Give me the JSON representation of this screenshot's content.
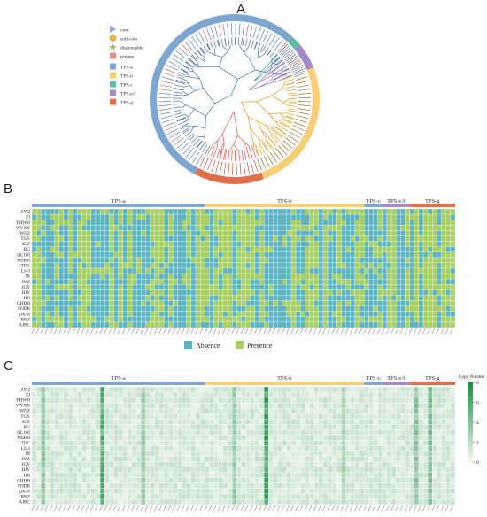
{
  "panels": {
    "a": "A",
    "b": "B",
    "c": "C"
  },
  "legend_a": {
    "categories": [
      {
        "label": "core",
        "icon": "triangle-icon",
        "color": "#8fa9d6"
      },
      {
        "label": "soft-core",
        "icon": "circle-icon",
        "color": "#f0b74a"
      },
      {
        "label": "dispensable",
        "icon": "star-icon",
        "color": "#9cbc6a"
      },
      {
        "label": "private",
        "icon": "square-icon",
        "color": "#e88a8a"
      }
    ],
    "subfamilies": [
      {
        "label": "TPS-a",
        "color": "#7ea6d1"
      },
      {
        "label": "TPS-b",
        "color": "#f6cf78"
      },
      {
        "label": "TPS-c",
        "color": "#5bbfa4"
      },
      {
        "label": "TPS-e/f",
        "color": "#a48ac8"
      },
      {
        "label": "TPS-g",
        "color": "#e0704d"
      }
    ]
  },
  "tree_ring": {
    "segments": [
      {
        "name": "TPS-a",
        "start": 118,
        "end": 340,
        "color": "#7ea6d1"
      },
      {
        "name": "TPS-g",
        "start": 70,
        "end": 118,
        "color": "#e0704d"
      },
      {
        "name": "TPS-b",
        "start": -22,
        "end": 70,
        "color": "#f6cf78"
      },
      {
        "name": "TPS-e/f",
        "start": -40,
        "end": -22,
        "color": "#a48ac8"
      },
      {
        "name": "TPS-c",
        "start": -46,
        "end": -40,
        "color": "#5bbfa4"
      }
    ]
  },
  "heatmap_b": {
    "groups": [
      {
        "label": "TPS-a",
        "cols": 38,
        "color": "#7ea6d1"
      },
      {
        "label": "TPS-b",
        "cols": 35,
        "color": "#f6cf78"
      },
      {
        "label": "TPS-c",
        "cols": 4,
        "color": "#7ea6d1"
      },
      {
        "label": "TPS-e/f",
        "cols": 6,
        "color": "#a48ac8"
      },
      {
        "label": "TPS-g",
        "cols": 10,
        "color": "#e0704d"
      }
    ],
    "rows": [
      "ZYQ",
      "ZJ",
      "YHWH",
      "WYXX",
      "WNZ",
      "TGY",
      "SCZ",
      "RG",
      "QL100",
      "MSBH",
      "LTDC",
      "LJ43",
      "JX",
      "JMZ",
      "JGY",
      "HJY",
      "HD",
      "GHDH",
      "FDDB",
      "DX58",
      "BHZ",
      "AJBC"
    ],
    "legend": [
      {
        "label": "Absence",
        "color": "#5cb5c2"
      },
      {
        "label": "Presence",
        "color": "#a7cf63"
      }
    ]
  },
  "heatmap_c": {
    "groups": [
      {
        "label": "TPS-a",
        "cols": 38,
        "color": "#7ea6d1"
      },
      {
        "label": "TPS-b",
        "cols": 35,
        "color": "#f6cf78"
      },
      {
        "label": "TPS-c",
        "cols": 4,
        "color": "#7ea6d1"
      },
      {
        "label": "TPS-e/f",
        "cols": 6,
        "color": "#a48ac8"
      },
      {
        "label": "TPS-g",
        "cols": 10,
        "color": "#e0704d"
      }
    ],
    "rows": [
      "ZYQ",
      "ZJ",
      "YHWH",
      "WYXX",
      "WNZ",
      "TGY",
      "SCZ",
      "RG",
      "QL100",
      "MSBH",
      "LTDC",
      "LJ43",
      "JX",
      "JMZ",
      "JGY",
      "HJY",
      "HD",
      "GHDH",
      "FDDB",
      "DX58",
      "BHZ",
      "AJBC"
    ],
    "colorbar": {
      "title": "Copy Number",
      "ticks": [
        "0",
        "2",
        "4",
        "6",
        "8"
      ],
      "color_low": "#f2f8f1",
      "color_high": "#1b8a43"
    }
  }
}
